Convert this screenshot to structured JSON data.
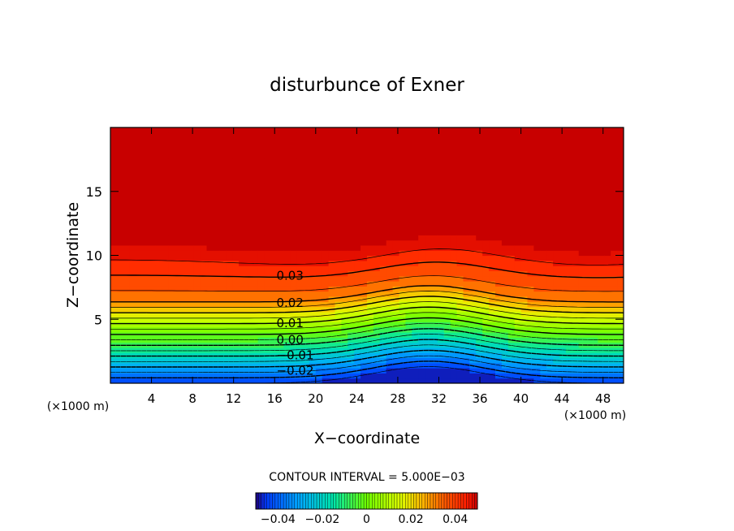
{
  "chart_data": {
    "type": "contour",
    "title": "disturbunce of Exner",
    "xlabel": "X−coordinate",
    "ylabel": "Z−coordinate",
    "x_unit_left": "(×1000 m)",
    "x_unit_right": "(×1000 m)",
    "xlim": [
      0,
      50
    ],
    "ylim": [
      0,
      20
    ],
    "x_ticks": [
      4,
      8,
      12,
      16,
      20,
      24,
      28,
      32,
      36,
      40,
      44,
      48
    ],
    "y_ticks": [
      5,
      10,
      15
    ],
    "field_range": [
      -0.05,
      0.05
    ],
    "contour_interval_text": "CONTOUR INTERVAL = 5.000E−03",
    "contour_labels": [
      {
        "text": "0.03",
        "x": 17.5,
        "z": 8.4
      },
      {
        "text": "0.02",
        "x": 17.5,
        "z": 6.3
      },
      {
        "text": "0.01",
        "x": 17.5,
        "z": 4.7
      },
      {
        "text": "0.00",
        "x": 17.5,
        "z": 3.4
      },
      {
        "text": "−0.01",
        "x": 18.0,
        "z": 2.2
      },
      {
        "text": "−0.02",
        "x": 18.0,
        "z": 1.0
      }
    ],
    "colorbar": {
      "range": [
        -0.05,
        0.05
      ],
      "tick_values": [
        -0.04,
        -0.02,
        0,
        0.02,
        0.04
      ],
      "tick_labels": [
        "−0.04",
        "−0.02",
        "0",
        "0.02",
        "0.04"
      ]
    },
    "colors": {
      "low": "#1e78ff",
      "mid_low": "#00e0c0",
      "zero": "#7dff00",
      "mid_high": "#ffc800",
      "high": "#ff2a00"
    }
  }
}
